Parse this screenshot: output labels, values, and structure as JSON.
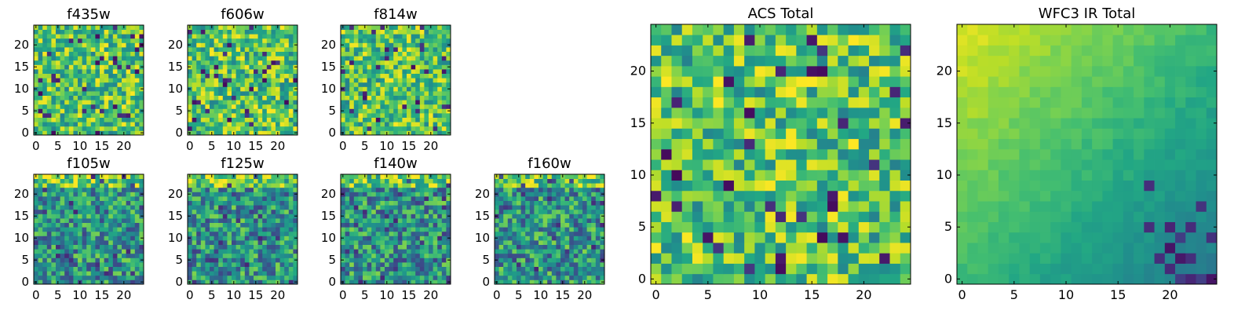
{
  "chart_data": [
    {
      "type": "heatmap",
      "title": "f435w",
      "xticks": [
        0,
        5,
        10,
        15,
        20
      ],
      "yticks": [
        0,
        5,
        10,
        15,
        20
      ],
      "xlim": [
        -0.5,
        24.5
      ],
      "ylim": [
        -0.5,
        24.5
      ],
      "grid": false,
      "colormap": "viridis",
      "pattern": "uniform"
    },
    {
      "type": "heatmap",
      "title": "f606w",
      "xticks": [
        0,
        5,
        10,
        15,
        20
      ],
      "yticks": [
        0,
        5,
        10,
        15,
        20
      ],
      "xlim": [
        -0.5,
        24.5
      ],
      "ylim": [
        -0.5,
        24.5
      ],
      "grid": false,
      "colormap": "viridis",
      "pattern": "uniform"
    },
    {
      "type": "heatmap",
      "title": "f814w",
      "xticks": [
        0,
        5,
        10,
        15,
        20
      ],
      "yticks": [
        0,
        5,
        10,
        15,
        20
      ],
      "xlim": [
        -0.5,
        24.5
      ],
      "ylim": [
        -0.5,
        24.5
      ],
      "grid": false,
      "colormap": "viridis",
      "pattern": "uniform"
    },
    {
      "type": "heatmap",
      "title": "f105w",
      "xticks": [
        0,
        5,
        10,
        15,
        20
      ],
      "yticks": [
        0,
        5,
        10,
        15,
        20
      ],
      "xlim": [
        -0.5,
        24.5
      ],
      "ylim": [
        -0.5,
        24.5
      ],
      "grid": false,
      "colormap": "viridis",
      "pattern": "ir"
    },
    {
      "type": "heatmap",
      "title": "f125w",
      "xticks": [
        0,
        5,
        10,
        15,
        20
      ],
      "yticks": [
        0,
        5,
        10,
        15,
        20
      ],
      "xlim": [
        -0.5,
        24.5
      ],
      "ylim": [
        -0.5,
        24.5
      ],
      "grid": false,
      "colormap": "viridis",
      "pattern": "ir"
    },
    {
      "type": "heatmap",
      "title": "f140w",
      "xticks": [
        0,
        5,
        10,
        15,
        20
      ],
      "yticks": [
        0,
        5,
        10,
        15,
        20
      ],
      "xlim": [
        -0.5,
        24.5
      ],
      "ylim": [
        -0.5,
        24.5
      ],
      "grid": false,
      "colormap": "viridis",
      "pattern": "ir"
    },
    {
      "type": "heatmap",
      "title": "f160w",
      "xticks": [
        0,
        5,
        10,
        15,
        20
      ],
      "yticks": [
        0,
        5,
        10,
        15,
        20
      ],
      "xlim": [
        -0.5,
        24.5
      ],
      "ylim": [
        -0.5,
        24.5
      ],
      "grid": false,
      "colormap": "viridis",
      "pattern": "ir"
    },
    {
      "type": "heatmap",
      "title": "ACS Total",
      "xticks": [
        0,
        5,
        10,
        15,
        20
      ],
      "yticks": [
        0,
        5,
        10,
        15,
        20
      ],
      "xlim": [
        -0.5,
        24.5
      ],
      "ylim": [
        -0.5,
        24.5
      ],
      "grid": false,
      "colormap": "viridis",
      "pattern": "uniform"
    },
    {
      "type": "heatmap",
      "title": "WFC3 IR Total",
      "xticks": [
        0,
        5,
        10,
        15,
        20
      ],
      "yticks": [
        0,
        5,
        10,
        15,
        20
      ],
      "xlim": [
        -0.5,
        24.5
      ],
      "ylim": [
        -0.5,
        24.5
      ],
      "grid": false,
      "colormap": "viridis",
      "pattern": "gradient"
    }
  ]
}
